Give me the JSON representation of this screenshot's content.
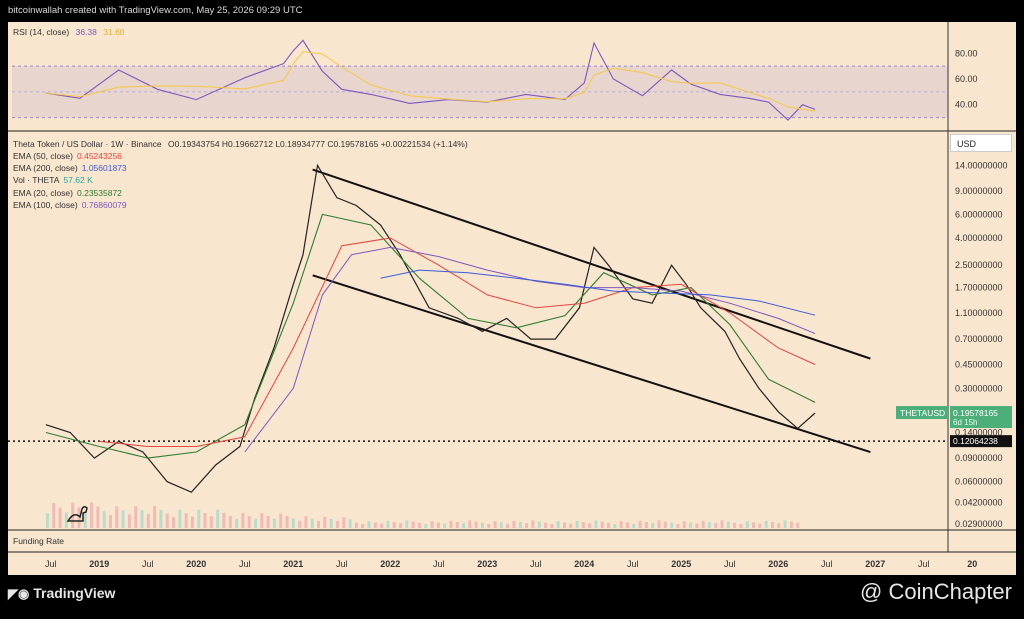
{
  "header": {
    "credit": "bitcoinwallah created with TradingView.com, May 25, 2026 09:29 UTC"
  },
  "rsi": {
    "label": "RSI (14, close)",
    "value1": "36.38",
    "value2": "31.60",
    "line_color": "#7e57c2",
    "ma_color": "#f5c842",
    "ticks": [
      "80.00",
      "60.00",
      "40.00"
    ]
  },
  "legend": {
    "symbol": "Theta Token / US Dollar · 1W · Binance",
    "ohlc": "O0.19343754  H0.19662712  L0.18934777  C0.19578165  +0.00221534 (+1.14%)",
    "items": [
      {
        "label": "EMA (50, close)",
        "value": "0.45243256",
        "color": "#e8453c"
      },
      {
        "label": "EMA (200, close)",
        "value": "1.05601873",
        "color": "#3b5bdb"
      },
      {
        "label": "Vol · THETA",
        "value": "57.62 K",
        "color": "#26a69a"
      },
      {
        "label": "EMA (20, close)",
        "value": "0.23535872",
        "color": "#2e7d32"
      },
      {
        "label": "EMA (100, close)",
        "value": "0.76860079",
        "color": "#7e57c2"
      }
    ]
  },
  "price_axis": {
    "currency": "USD",
    "ticks": [
      "14.00000000",
      "9.00000000",
      "6.00000000",
      "4.00000000",
      "2.50000000",
      "1.70000000",
      "1.10000000",
      "0.70000000",
      "0.45000000",
      "0.30000000",
      "0.14000000",
      "0.09000000",
      "0.06000000",
      "0.04200000",
      "0.02900000"
    ],
    "last_label": "THETAUSD",
    "last_price": "0.19578165",
    "countdown": "6d 15h",
    "level_price": "0.12064238"
  },
  "time_axis": {
    "ticks": [
      "Jul",
      "2019",
      "Jul",
      "2020",
      "Jul",
      "2021",
      "Jul",
      "2022",
      "Jul",
      "2023",
      "Jul",
      "2024",
      "Jul",
      "2025",
      "Jul",
      "2026",
      "Jul",
      "2027",
      "Jul",
      "20"
    ]
  },
  "funding": {
    "label": "Funding Rate"
  },
  "footer": {
    "logo": "TradingView",
    "brand": "@ CoinChapter"
  },
  "chart_data": {
    "type": "line",
    "title": "Theta Token / US Dollar · 1W · Binance",
    "log_scale": true,
    "series": [
      {
        "name": "THETAUSD",
        "x": [
          2018.45,
          2018.7,
          2018.95,
          2019.2,
          2019.45,
          2019.7,
          2019.95,
          2020.2,
          2020.45,
          2020.6,
          2020.8,
          2021.0,
          2021.1,
          2021.25,
          2021.45,
          2021.65,
          2021.9,
          2022.1,
          2022.4,
          2022.7,
          2022.95,
          2023.2,
          2023.45,
          2023.7,
          2023.95,
          2024.1,
          2024.25,
          2024.5,
          2024.7,
          2024.9,
          2025.05,
          2025.2,
          2025.45,
          2025.6,
          2025.8,
          2026.0,
          2026.2,
          2026.38
        ],
        "values": [
          0.16,
          0.14,
          0.09,
          0.12,
          0.1,
          0.06,
          0.05,
          0.08,
          0.11,
          0.25,
          0.6,
          1.8,
          3.0,
          14.0,
          8.0,
          7.0,
          5.0,
          3.0,
          1.2,
          1.0,
          0.8,
          1.0,
          0.7,
          0.7,
          1.2,
          3.4,
          2.5,
          1.4,
          1.3,
          2.5,
          1.8,
          1.2,
          0.8,
          0.5,
          0.3,
          0.2,
          0.15,
          0.196
        ]
      },
      {
        "name": "EMA (20, close)",
        "x": [
          2018.45,
          2019.0,
          2019.5,
          2020.0,
          2020.5,
          2021.0,
          2021.3,
          2021.8,
          2022.3,
          2022.8,
          2023.3,
          2023.8,
          2024.2,
          2024.7,
          2025.1,
          2025.5,
          2025.9,
          2026.38
        ],
        "values": [
          0.14,
          0.11,
          0.09,
          0.1,
          0.16,
          1.3,
          6.0,
          5.0,
          2.0,
          1.0,
          0.85,
          1.05,
          2.2,
          1.5,
          1.7,
          0.9,
          0.35,
          0.235
        ]
      },
      {
        "name": "EMA (50, close)",
        "x": [
          2019.0,
          2019.5,
          2020.0,
          2020.5,
          2021.0,
          2021.5,
          2022.0,
          2022.5,
          2023.0,
          2023.5,
          2024.0,
          2024.5,
          2025.0,
          2025.5,
          2026.0,
          2026.38
        ],
        "values": [
          0.12,
          0.11,
          0.11,
          0.13,
          0.6,
          3.5,
          4.0,
          2.5,
          1.5,
          1.2,
          1.3,
          1.7,
          1.8,
          1.1,
          0.6,
          0.452
        ]
      },
      {
        "name": "EMA (100, close)",
        "x": [
          2020.5,
          2021.0,
          2021.3,
          2021.6,
          2022.0,
          2022.5,
          2023.0,
          2023.5,
          2024.0,
          2024.5,
          2025.0,
          2025.5,
          2026.0,
          2026.38
        ],
        "values": [
          0.1,
          0.3,
          1.5,
          3.0,
          3.4,
          2.9,
          2.3,
          1.9,
          1.7,
          1.7,
          1.6,
          1.3,
          1.0,
          0.769
        ]
      },
      {
        "name": "EMA (200, close)",
        "x": [
          2021.9,
          2022.3,
          2022.8,
          2023.3,
          2023.8,
          2024.3,
          2024.8,
          2025.3,
          2025.8,
          2026.38
        ],
        "values": [
          2.0,
          2.3,
          2.2,
          2.0,
          1.8,
          1.6,
          1.55,
          1.5,
          1.35,
          1.056
        ]
      }
    ],
    "channel": {
      "upper": {
        "x": [
          2021.2,
          2026.95
        ],
        "values": [
          13.0,
          0.5
        ]
      },
      "lower": {
        "x": [
          2021.2,
          2026.95
        ],
        "values": [
          2.1,
          0.1
        ]
      }
    },
    "support_level": 0.12064238,
    "ylim": [
      0.027,
      17.0
    ],
    "xlim": [
      2018.1,
      2027.75
    ],
    "rsi": {
      "x": [
        2018.45,
        2018.8,
        2019.2,
        2019.6,
        2020.0,
        2020.5,
        2020.9,
        2021.0,
        2021.1,
        2021.3,
        2021.5,
        2021.8,
        2022.2,
        2022.6,
        2023.0,
        2023.4,
        2023.8,
        2024.0,
        2024.1,
        2024.3,
        2024.6,
        2024.9,
        2025.1,
        2025.4,
        2025.7,
        2025.9,
        2026.1,
        2026.25,
        2026.38
      ],
      "values": [
        49,
        45,
        67,
        52,
        44,
        61,
        72,
        82,
        90,
        66,
        52,
        48,
        41,
        44,
        42,
        48,
        44,
        57,
        88,
        60,
        47,
        67,
        56,
        48,
        45,
        42,
        28,
        40,
        36.38
      ],
      "ylim": [
        25,
        95
      ]
    }
  }
}
